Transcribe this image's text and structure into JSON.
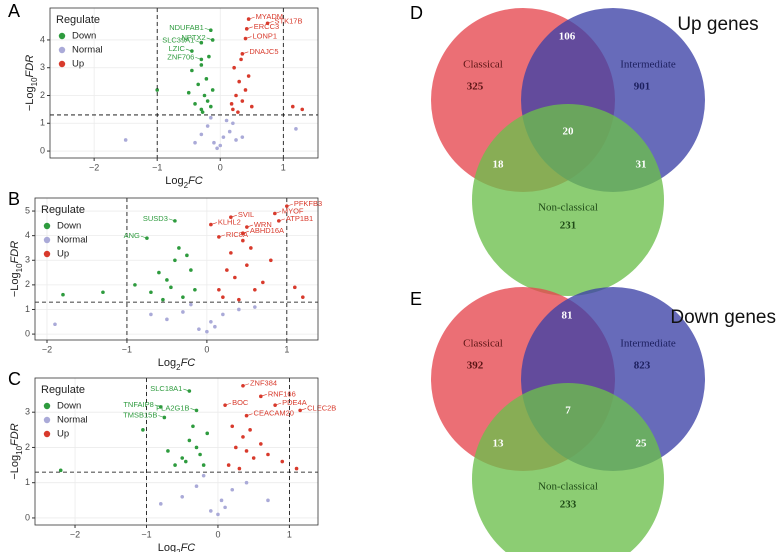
{
  "chart_data": [
    {
      "type": "scatter",
      "panel": "A",
      "xlabel": [
        "Log",
        "2",
        "FC"
      ],
      "ylabel": [
        "−Log",
        "10",
        "FDR"
      ],
      "legend_title": "Regulate",
      "legend": "upper left",
      "grid": true,
      "xlim": [
        -2.7,
        1.55
      ],
      "ylim": [
        -0.25,
        5.15
      ],
      "xticks": [
        {
          "value": -2,
          "label": "−2"
        },
        {
          "value": -1,
          "label": "−1"
        },
        0,
        1
      ],
      "yticks": [
        0,
        1,
        2,
        3,
        4
      ],
      "threshold_x": [
        -1,
        1
      ],
      "threshold_y": 1.3,
      "series": [
        {
          "name": "Down",
          "color": "#2e9b3e",
          "x": [
            -0.3,
            -0.25,
            -0.35,
            -0.2,
            -0.45,
            -0.15,
            -0.3,
            -0.5,
            -0.22,
            -0.28,
            -0.12,
            -0.4,
            -1.0,
            -0.18
          ],
          "y": [
            1.5,
            2.0,
            2.4,
            1.8,
            2.9,
            1.6,
            3.1,
            2.1,
            2.6,
            1.4,
            2.2,
            1.7,
            2.2,
            3.4
          ]
        },
        {
          "name": "Normal",
          "color": "#aaaad8",
          "x": [
            -0.1,
            0.05,
            -0.2,
            0.15,
            -0.05,
            0.1,
            -0.3,
            0.25,
            0,
            -0.15,
            0.2,
            -0.4,
            0.35,
            1.2,
            -1.5
          ],
          "y": [
            0.3,
            0.5,
            0.9,
            0.7,
            0.1,
            1.1,
            0.6,
            0.4,
            0.2,
            1.2,
            1.0,
            0.3,
            0.5,
            0.8,
            0.4
          ]
        },
        {
          "name": "Up",
          "color": "#d83a2c",
          "x": [
            0.2,
            0.25,
            0.3,
            0.35,
            0.22,
            0.4,
            0.28,
            0.45,
            0.18,
            0.33,
            0.5,
            1.15,
            1.3
          ],
          "y": [
            1.5,
            2.0,
            2.5,
            1.8,
            3.0,
            2.2,
            1.4,
            2.7,
            1.7,
            3.3,
            1.6,
            1.6,
            1.5
          ]
        }
      ],
      "annotations": [
        {
          "label": "MYADM",
          "x": 0.45,
          "y": 4.75,
          "color": "#d83a2c"
        },
        {
          "label": "STK17B",
          "x": 0.75,
          "y": 4.6,
          "color": "#d83a2c"
        },
        {
          "label": "ERCC3",
          "x": 0.42,
          "y": 4.4,
          "color": "#d83a2c"
        },
        {
          "label": "LONP1",
          "x": 0.4,
          "y": 4.05,
          "color": "#d83a2c"
        },
        {
          "label": "DNAJC5",
          "x": 0.35,
          "y": 3.5,
          "color": "#d83a2c"
        },
        {
          "label": "NDUFAB1",
          "x": -0.15,
          "y": 4.35,
          "color": "#2e9b3e"
        },
        {
          "label": "NPTX2",
          "x": -0.12,
          "y": 4.0,
          "color": "#2e9b3e"
        },
        {
          "label": "SLC39A1",
          "x": -0.3,
          "y": 3.9,
          "color": "#2e9b3e"
        },
        {
          "label": "LZIC",
          "x": -0.45,
          "y": 3.6,
          "color": "#2e9b3e"
        },
        {
          "label": "ZNF706",
          "x": -0.3,
          "y": 3.3,
          "color": "#2e9b3e"
        }
      ]
    },
    {
      "type": "scatter",
      "panel": "B",
      "xlabel": [
        "Log",
        "2",
        "FC"
      ],
      "ylabel": [
        "−Log",
        "10",
        "FDR"
      ],
      "legend_title": "Regulate",
      "legend": "upper left",
      "grid": true,
      "xlim": [
        -2.15,
        1.39
      ],
      "ylim": [
        -0.24,
        5.53
      ],
      "xticks": [
        {
          "value": -2,
          "label": "−2"
        },
        {
          "value": -1,
          "label": "−1"
        },
        0,
        1
      ],
      "yticks": [
        0,
        1,
        2,
        3,
        4,
        5
      ],
      "threshold_x": [
        -1,
        1
      ],
      "threshold_y": 1.3,
      "series": [
        {
          "name": "Down",
          "color": "#2e9b3e",
          "x": [
            -0.3,
            -0.5,
            -0.7,
            -0.2,
            -0.4,
            -0.6,
            -0.9,
            -0.35,
            -0.15,
            -1.3,
            -1.8,
            -0.55,
            -0.25,
            -0.45
          ],
          "y": [
            1.5,
            2.2,
            1.7,
            2.6,
            3.0,
            2.5,
            2.0,
            3.5,
            1.8,
            1.7,
            1.6,
            1.4,
            3.2,
            1.9
          ]
        },
        {
          "name": "Normal",
          "color": "#aaaad8",
          "x": [
            -0.1,
            0.05,
            -0.3,
            0.2,
            0,
            -0.5,
            0.4,
            -0.2,
            0.1,
            -1.9,
            -0.7,
            0.6
          ],
          "y": [
            0.2,
            0.5,
            0.9,
            0.8,
            0.1,
            0.6,
            1.0,
            1.2,
            0.3,
            0.4,
            0.8,
            1.1
          ]
        },
        {
          "name": "Up",
          "color": "#d83a2c",
          "x": [
            0.2,
            0.35,
            0.5,
            0.7,
            0.3,
            0.45,
            0.6,
            0.25,
            0.8,
            1.1,
            1.2,
            0.15,
            0.55,
            0.4
          ],
          "y": [
            1.5,
            2.3,
            2.8,
            2.1,
            3.3,
            3.8,
            1.8,
            2.6,
            3.0,
            1.9,
            1.5,
            1.8,
            3.5,
            1.4
          ]
        }
      ],
      "annotations": [
        {
          "label": "PFKFB3",
          "x": 1.0,
          "y": 5.2,
          "color": "#d83a2c"
        },
        {
          "label": "MYOF",
          "x": 0.85,
          "y": 4.9,
          "color": "#d83a2c"
        },
        {
          "label": "ATP1B1",
          "x": 0.9,
          "y": 4.6,
          "color": "#d83a2c"
        },
        {
          "label": "SVIL",
          "x": 0.3,
          "y": 4.75,
          "color": "#d83a2c"
        },
        {
          "label": "KLHL2",
          "x": 0.05,
          "y": 4.45,
          "color": "#d83a2c"
        },
        {
          "label": "WRN",
          "x": 0.5,
          "y": 4.35,
          "color": "#d83a2c"
        },
        {
          "label": "ABHD16A",
          "x": 0.45,
          "y": 4.1,
          "color": "#d83a2c"
        },
        {
          "label": "RIC8A",
          "x": 0.15,
          "y": 3.95,
          "color": "#d83a2c"
        },
        {
          "label": "SUSD3",
          "x": -0.4,
          "y": 4.6,
          "color": "#2e9b3e"
        },
        {
          "label": "ANG",
          "x": -0.75,
          "y": 3.9,
          "color": "#2e9b3e"
        }
      ]
    },
    {
      "type": "scatter",
      "panel": "C",
      "xlabel": [
        "Log",
        "2",
        "FC"
      ],
      "ylabel": [
        "−Log",
        "10",
        "FDR"
      ],
      "legend_title": "Regulate",
      "legend": "upper left",
      "grid": true,
      "xlim": [
        -2.56,
        1.4
      ],
      "ylim": [
        -0.2,
        3.97
      ],
      "xticks": [
        {
          "value": -2,
          "label": "−2"
        },
        {
          "value": -1,
          "label": "−1"
        },
        0,
        1
      ],
      "yticks": [
        0,
        1,
        2,
        3
      ],
      "threshold_x": [
        -1,
        1
      ],
      "threshold_y": 1.3,
      "series": [
        {
          "name": "Down",
          "color": "#2e9b3e",
          "x": [
            -0.2,
            -0.3,
            -0.5,
            -0.15,
            -0.4,
            -0.6,
            -0.25,
            -0.7,
            -0.35,
            -1.05,
            -2.2,
            -0.45
          ],
          "y": [
            1.5,
            2.0,
            1.7,
            2.4,
            2.2,
            1.5,
            1.8,
            1.9,
            2.6,
            2.5,
            1.35,
            1.6
          ]
        },
        {
          "name": "Normal",
          "color": "#aaaad8",
          "x": [
            -0.1,
            0.05,
            -0.3,
            0.2,
            0,
            -0.5,
            0.4,
            -0.2,
            0.1,
            0.7,
            -0.8
          ],
          "y": [
            0.2,
            0.5,
            0.9,
            0.8,
            0.1,
            0.6,
            1.0,
            1.2,
            0.3,
            0.5,
            0.4
          ]
        },
        {
          "name": "Up",
          "color": "#d83a2c",
          "x": [
            0.15,
            0.25,
            0.35,
            0.5,
            0.2,
            0.4,
            0.6,
            0.3,
            0.7,
            0.45,
            0.9,
            1.1
          ],
          "y": [
            1.5,
            2.0,
            2.3,
            1.7,
            2.6,
            1.9,
            2.1,
            1.4,
            1.8,
            2.5,
            1.6,
            1.4
          ]
        }
      ],
      "annotations": [
        {
          "label": "ZNF384",
          "x": 0.35,
          "y": 3.75,
          "color": "#d83a2c"
        },
        {
          "label": "RNF166",
          "x": 0.6,
          "y": 3.45,
          "color": "#d83a2c"
        },
        {
          "label": "BOC",
          "x": 0.1,
          "y": 3.2,
          "color": "#d83a2c"
        },
        {
          "label": "PDE4A",
          "x": 0.8,
          "y": 3.2,
          "color": "#d83a2c"
        },
        {
          "label": "CEACAM20",
          "x": 0.4,
          "y": 2.9,
          "color": "#d83a2c"
        },
        {
          "label": "CLEC2B",
          "x": 1.15,
          "y": 3.05,
          "color": "#d83a2c"
        },
        {
          "label": "SLC18A1",
          "x": -0.4,
          "y": 3.6,
          "color": "#2e9b3e"
        },
        {
          "label": "TNFAIP8",
          "x": -0.8,
          "y": 3.15,
          "color": "#2e9b3e"
        },
        {
          "label": "PLA2G1B",
          "x": -0.3,
          "y": 3.05,
          "color": "#2e9b3e"
        },
        {
          "label": "TMSB15B",
          "x": -0.75,
          "y": 2.85,
          "color": "#2e9b3e"
        }
      ]
    },
    {
      "type": "venn",
      "panel": "D",
      "title": "Up genes",
      "sets": [
        "Classical",
        "Intermediate",
        "Non-classical"
      ],
      "colors": [
        "#e6464e",
        "#3c41a6",
        "#6cbf4c"
      ],
      "values": [
        325,
        901,
        231,
        106,
        18,
        31,
        20
      ]
    },
    {
      "type": "venn",
      "panel": "E",
      "title": "Down genes",
      "sets": [
        "Classical",
        "Intermediate",
        "Non-classical"
      ],
      "colors": [
        "#e6464e",
        "#3c41a6",
        "#6cbf4c"
      ],
      "values": [
        392,
        823,
        233,
        81,
        13,
        25,
        7
      ]
    }
  ]
}
